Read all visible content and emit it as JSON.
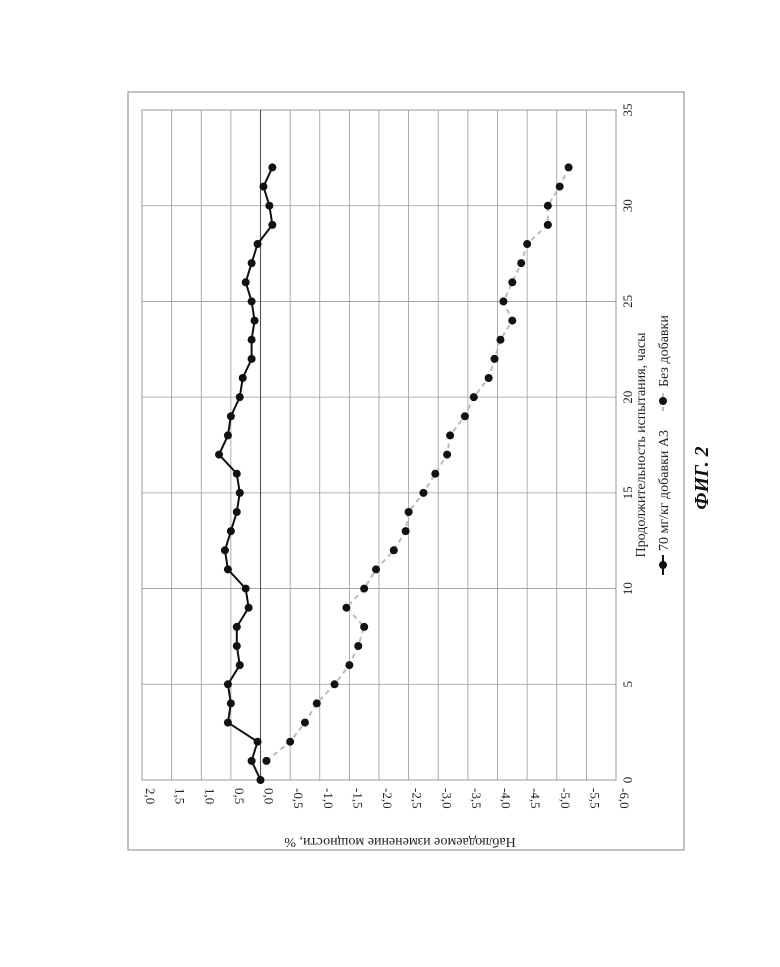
{
  "figure_caption": "ФИГ. 2",
  "chart_data": {
    "type": "line",
    "xlabel": "Продолжительность испытания, часы",
    "ylabel": "Наблюдаемое изменение мощности, %",
    "xlim": [
      0,
      35
    ],
    "ylim": [
      -6,
      2
    ],
    "x_ticks": [
      "0",
      "5",
      "10",
      "15",
      "20",
      "25",
      "30",
      "35"
    ],
    "y_ticks": [
      "2,0",
      "1,5",
      "1,0",
      "0,5",
      "0,0",
      "-0,5",
      "-1,0",
      "-1,5",
      "-2,0",
      "-2,5",
      "-3,0",
      "-3,5",
      "-4,0",
      "-4,5",
      "-5,0",
      "-5,5",
      "-6,0"
    ],
    "grid": true,
    "orientation": "rotated 90° clockwise on page",
    "legend_position": "bottom",
    "series": [
      {
        "name": "70 мг/кг добавки А3",
        "color": "#111111",
        "line_style": "solid",
        "x": [
          0,
          1,
          2,
          3,
          4,
          5,
          6,
          7,
          8,
          9,
          10,
          11,
          12,
          13,
          14,
          15,
          16,
          17,
          18,
          19,
          20,
          21,
          22,
          23,
          24,
          25,
          26,
          27,
          28,
          29,
          30,
          31,
          32
        ],
        "y": [
          0.0,
          0.15,
          0.05,
          0.55,
          0.5,
          0.55,
          0.35,
          0.4,
          0.4,
          0.2,
          0.25,
          0.55,
          0.6,
          0.5,
          0.4,
          0.35,
          0.4,
          0.7,
          0.55,
          0.5,
          0.35,
          0.3,
          0.15,
          0.15,
          0.1,
          0.15,
          0.25,
          0.15,
          0.05,
          -0.2,
          -0.15,
          -0.05,
          -0.2
        ],
        "point_size": 4
      },
      {
        "name": "Без добавки",
        "color": "#bbbbbb",
        "line_style": "dashed",
        "x": [
          1,
          2,
          3,
          4,
          5,
          6,
          7,
          8,
          9,
          10,
          11,
          12,
          13,
          14,
          15,
          16,
          17,
          18,
          19,
          20,
          21,
          22,
          23,
          24,
          25,
          26,
          27,
          28,
          29,
          30,
          31,
          32
        ],
        "y": [
          -0.1,
          -0.5,
          -0.75,
          -0.95,
          -1.25,
          -1.5,
          -1.65,
          -1.75,
          -1.45,
          -1.75,
          -1.95,
          -2.25,
          -2.45,
          -2.5,
          -2.75,
          -2.95,
          -3.15,
          -3.2,
          -3.45,
          -3.6,
          -3.85,
          -3.95,
          -4.05,
          -4.25,
          -4.1,
          -4.25,
          -4.4,
          -4.5,
          -4.85,
          -4.85,
          -5.05,
          -5.2
        ],
        "point_size": 4
      }
    ]
  }
}
